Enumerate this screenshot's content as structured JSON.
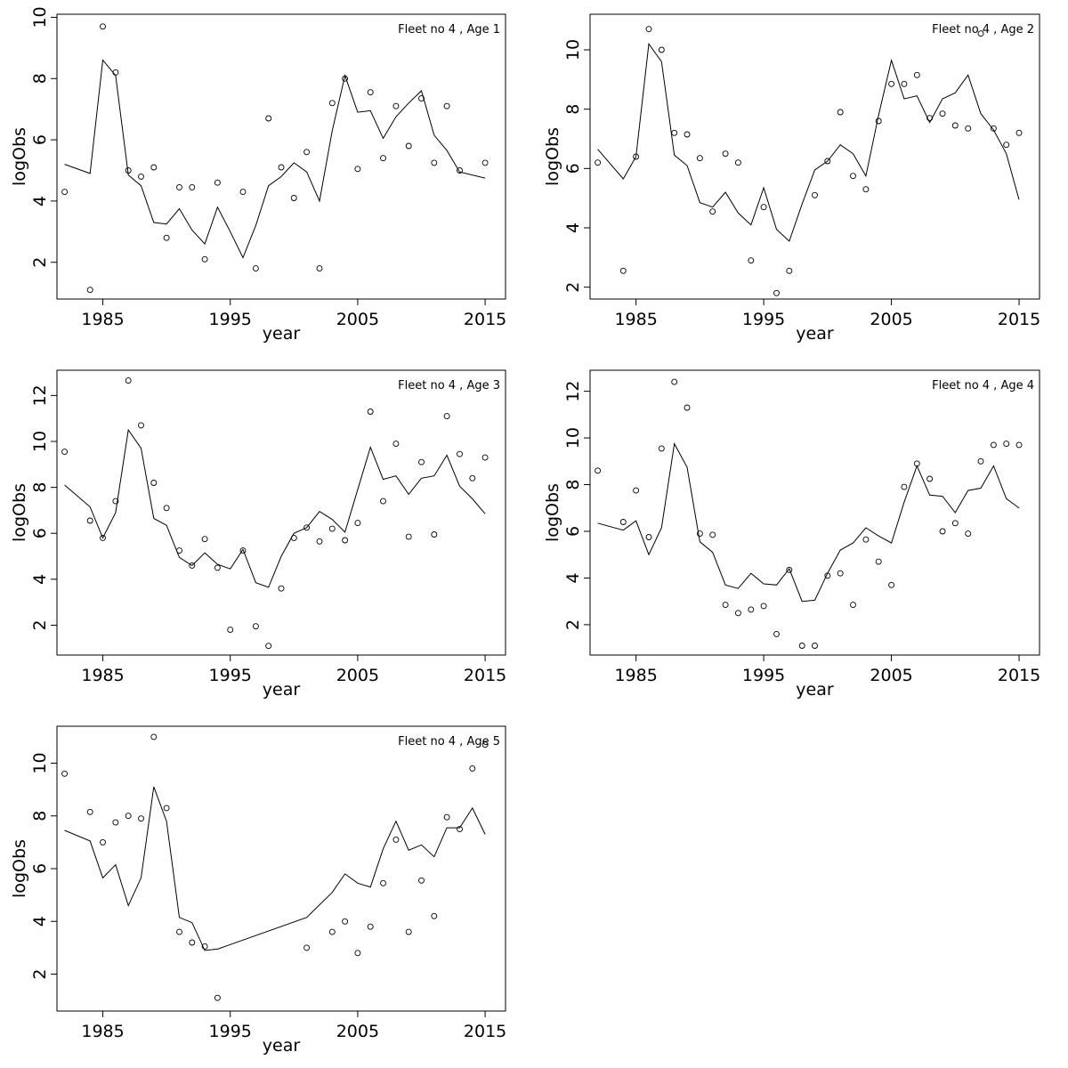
{
  "chart_data": [
    {
      "type": "line",
      "title": "Fleet no 4 , Age 1",
      "xlabel": "year",
      "ylabel": "logObs",
      "xlim": [
        1981.4,
        2016.6
      ],
      "ylim": [
        0.8,
        10.1
      ],
      "x_ticks": [
        1985,
        1995,
        2005,
        2015
      ],
      "y_ticks": [
        2,
        4,
        6,
        8,
        10
      ],
      "series": [
        {
          "role": "points",
          "x": [
            1982,
            1984,
            1985,
            1986,
            1987,
            1988,
            1989,
            1990,
            1991,
            1992,
            1993,
            1994,
            1996,
            1997,
            1998,
            1999,
            2000,
            2001,
            2002,
            2003,
            2004,
            2005,
            2006,
            2007,
            2008,
            2009,
            2010,
            2011,
            2012,
            2013,
            2015
          ],
          "y": [
            4.3,
            1.1,
            9.7,
            8.2,
            5.0,
            4.8,
            5.1,
            2.8,
            4.45,
            4.45,
            2.1,
            4.6,
            4.3,
            1.8,
            6.7,
            5.1,
            4.1,
            5.6,
            1.8,
            7.2,
            8.0,
            5.05,
            7.55,
            5.4,
            7.1,
            5.8,
            7.35,
            5.25,
            7.1,
            5.0,
            5.25
          ]
        },
        {
          "role": "line",
          "x": [
            1982,
            1984,
            1985,
            1986,
            1987,
            1988,
            1989,
            1990,
            1991,
            1992,
            1993,
            1994,
            1995,
            1996,
            1997,
            1998,
            1999,
            2000,
            2001,
            2002,
            2003,
            2004,
            2005,
            2006,
            2007,
            2008,
            2009,
            2010,
            2011,
            2012,
            2013,
            2015
          ],
          "y": [
            5.2,
            4.9,
            8.6,
            8.1,
            4.85,
            4.5,
            3.3,
            3.25,
            3.75,
            3.05,
            2.6,
            3.8,
            3.0,
            2.15,
            3.2,
            4.5,
            4.8,
            5.25,
            4.95,
            4.0,
            6.3,
            8.1,
            6.9,
            6.95,
            6.05,
            6.75,
            7.2,
            7.6,
            6.15,
            5.65,
            4.95,
            4.75
          ]
        }
      ]
    },
    {
      "type": "line",
      "title": "Fleet no 4 , Age 2",
      "xlabel": "year",
      "ylabel": "logObs",
      "xlim": [
        1981.4,
        2016.6
      ],
      "ylim": [
        1.6,
        11.2
      ],
      "x_ticks": [
        1985,
        1995,
        2005,
        2015
      ],
      "y_ticks": [
        2,
        4,
        6,
        8,
        10
      ],
      "series": [
        {
          "role": "points",
          "x": [
            1982,
            1984,
            1985,
            1986,
            1987,
            1988,
            1989,
            1990,
            1991,
            1992,
            1993,
            1994,
            1995,
            1996,
            1997,
            1999,
            2000,
            2001,
            2002,
            2003,
            2004,
            2005,
            2006,
            2007,
            2008,
            2009,
            2010,
            2011,
            2012,
            2013,
            2014,
            2015
          ],
          "y": [
            6.2,
            2.55,
            6.4,
            10.7,
            10.0,
            7.2,
            7.15,
            6.35,
            4.55,
            6.5,
            6.2,
            2.9,
            4.7,
            1.8,
            2.55,
            5.1,
            6.25,
            7.9,
            5.75,
            5.3,
            7.6,
            8.85,
            8.85,
            9.15,
            7.7,
            7.85,
            7.45,
            7.35,
            10.55,
            7.35,
            6.8,
            7.2
          ]
        },
        {
          "role": "line",
          "x": [
            1982,
            1984,
            1985,
            1986,
            1987,
            1988,
            1989,
            1990,
            1991,
            1992,
            1993,
            1994,
            1995,
            1996,
            1997,
            1998,
            1999,
            2000,
            2001,
            2002,
            2003,
            2004,
            2005,
            2006,
            2007,
            2008,
            2009,
            2010,
            2011,
            2012,
            2013,
            2014,
            2015
          ],
          "y": [
            6.65,
            5.65,
            6.4,
            10.2,
            9.6,
            6.45,
            6.1,
            4.85,
            4.7,
            5.2,
            4.5,
            4.1,
            5.35,
            3.95,
            3.55,
            4.8,
            5.95,
            6.25,
            6.8,
            6.5,
            5.75,
            7.8,
            9.65,
            8.35,
            8.45,
            7.55,
            8.35,
            8.55,
            9.15,
            7.85,
            7.3,
            6.5,
            4.95
          ]
        }
      ]
    },
    {
      "type": "line",
      "title": "Fleet no 4 , Age 3",
      "xlabel": "year",
      "ylabel": "logObs",
      "xlim": [
        1981.4,
        2016.6
      ],
      "ylim": [
        0.7,
        13.1
      ],
      "x_ticks": [
        1985,
        1995,
        2005,
        2015
      ],
      "y_ticks": [
        2,
        4,
        6,
        8,
        10,
        12
      ],
      "series": [
        {
          "role": "points",
          "x": [
            1982,
            1984,
            1985,
            1986,
            1987,
            1988,
            1989,
            1990,
            1991,
            1992,
            1993,
            1994,
            1995,
            1996,
            1997,
            1998,
            1999,
            2000,
            2001,
            2002,
            2003,
            2004,
            2005,
            2006,
            2007,
            2008,
            2009,
            2010,
            2011,
            2012,
            2013,
            2014,
            2015
          ],
          "y": [
            9.55,
            6.55,
            5.8,
            7.4,
            12.65,
            10.7,
            8.2,
            7.1,
            5.25,
            4.6,
            5.75,
            4.5,
            1.8,
            5.25,
            1.95,
            1.1,
            3.6,
            5.8,
            6.25,
            5.65,
            6.2,
            5.7,
            6.45,
            11.3,
            7.4,
            9.9,
            5.85,
            9.1,
            5.95,
            11.1,
            9.45,
            8.4,
            9.3
          ]
        },
        {
          "role": "line",
          "x": [
            1982,
            1984,
            1985,
            1986,
            1987,
            1988,
            1989,
            1990,
            1991,
            1992,
            1993,
            1994,
            1995,
            1996,
            1997,
            1998,
            1999,
            2000,
            2001,
            2002,
            2003,
            2004,
            2005,
            2006,
            2007,
            2008,
            2009,
            2010,
            2011,
            2012,
            2013,
            2014,
            2015
          ],
          "y": [
            8.1,
            7.15,
            5.8,
            6.9,
            10.5,
            9.7,
            6.65,
            6.35,
            4.95,
            4.6,
            5.15,
            4.65,
            4.45,
            5.3,
            3.85,
            3.65,
            5.0,
            6.0,
            6.25,
            6.95,
            6.6,
            6.05,
            7.9,
            9.75,
            8.35,
            8.5,
            7.7,
            8.4,
            8.5,
            9.4,
            8.05,
            7.5,
            6.85
          ]
        }
      ]
    },
    {
      "type": "line",
      "title": "Fleet no 4 , Age 4",
      "xlabel": "year",
      "ylabel": "logObs",
      "xlim": [
        1981.4,
        2016.6
      ],
      "ylim": [
        0.7,
        12.9
      ],
      "x_ticks": [
        1985,
        1995,
        2005,
        2015
      ],
      "y_ticks": [
        2,
        4,
        6,
        8,
        10,
        12
      ],
      "series": [
        {
          "role": "points",
          "x": [
            1982,
            1984,
            1985,
            1986,
            1987,
            1988,
            1989,
            1990,
            1991,
            1992,
            1993,
            1994,
            1995,
            1996,
            1997,
            1998,
            1999,
            2000,
            2001,
            2002,
            2003,
            2004,
            2005,
            2006,
            2007,
            2008,
            2009,
            2010,
            2011,
            2012,
            2013,
            2014,
            2015
          ],
          "y": [
            8.6,
            6.4,
            7.75,
            5.75,
            9.55,
            12.4,
            11.3,
            5.9,
            5.85,
            2.85,
            2.5,
            2.65,
            2.8,
            1.6,
            4.35,
            1.1,
            1.1,
            4.1,
            4.2,
            2.85,
            5.65,
            4.7,
            3.7,
            7.9,
            8.9,
            8.25,
            6.0,
            6.35,
            5.9,
            9.0,
            9.7,
            9.75,
            9.7
          ]
        },
        {
          "role": "line",
          "x": [
            1982,
            1984,
            1985,
            1986,
            1987,
            1988,
            1989,
            1990,
            1991,
            1992,
            1993,
            1994,
            1995,
            1996,
            1997,
            1998,
            1999,
            2000,
            2001,
            2002,
            2003,
            2004,
            2005,
            2006,
            2007,
            2008,
            2009,
            2010,
            2011,
            2012,
            2013,
            2014,
            2015
          ],
          "y": [
            6.35,
            6.05,
            6.45,
            5.0,
            6.15,
            9.75,
            8.75,
            5.55,
            5.1,
            3.7,
            3.55,
            4.2,
            3.75,
            3.7,
            4.4,
            3.0,
            3.05,
            4.2,
            5.2,
            5.5,
            6.15,
            5.8,
            5.5,
            7.25,
            8.8,
            7.55,
            7.5,
            6.8,
            7.75,
            7.85,
            8.8,
            7.4,
            7.0
          ]
        }
      ]
    },
    {
      "type": "line",
      "title": "Fleet no 4 , Age 5",
      "xlabel": "year",
      "ylabel": "logObs",
      "xlim": [
        1981.4,
        2016.6
      ],
      "ylim": [
        0.6,
        11.4
      ],
      "x_ticks": [
        1985,
        1995,
        2005,
        2015
      ],
      "y_ticks": [
        2,
        4,
        6,
        8,
        10
      ],
      "series": [
        {
          "role": "points",
          "x": [
            1982,
            1984,
            1985,
            1986,
            1987,
            1988,
            1989,
            1990,
            1991,
            1992,
            1993,
            1994,
            2001,
            2003,
            2004,
            2005,
            2006,
            2007,
            2008,
            2009,
            2010,
            2011,
            2012,
            2013,
            2014,
            2015
          ],
          "y": [
            9.6,
            8.15,
            7.0,
            7.75,
            8.0,
            7.9,
            11.0,
            8.3,
            3.6,
            3.2,
            3.05,
            1.1,
            3.0,
            3.6,
            4.0,
            2.8,
            3.8,
            5.45,
            7.1,
            3.6,
            5.55,
            4.2,
            7.95,
            7.5,
            9.8,
            10.7
          ]
        },
        {
          "role": "line",
          "x": [
            1982,
            1984,
            1985,
            1986,
            1987,
            1988,
            1989,
            1990,
            1991,
            1992,
            1993,
            1994,
            2001,
            2003,
            2004,
            2005,
            2006,
            2007,
            2008,
            2009,
            2010,
            2011,
            2012,
            2013,
            2014,
            2015
          ],
          "y": [
            7.45,
            7.05,
            5.65,
            6.15,
            4.6,
            5.65,
            9.1,
            7.8,
            4.15,
            3.95,
            2.9,
            2.95,
            4.15,
            5.1,
            5.8,
            5.45,
            5.3,
            6.75,
            7.8,
            6.7,
            6.9,
            6.45,
            7.55,
            7.55,
            8.3,
            7.3
          ]
        }
      ]
    }
  ]
}
